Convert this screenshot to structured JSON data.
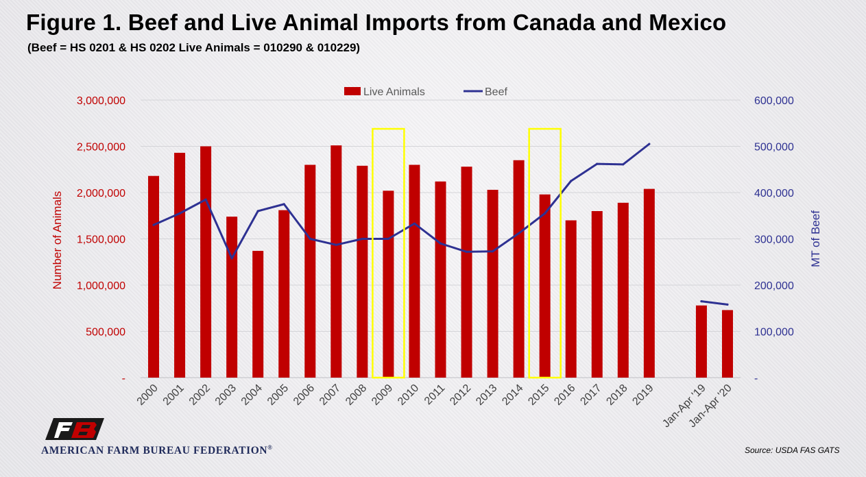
{
  "title": "Figure 1. Beef and Live Animal Imports from Canada and Mexico",
  "subtitle": "(Beef = HS 0201 & HS 0202 Live Animals = 010290 & 010229)",
  "source": "Source: USDA FAS GATS",
  "logo": {
    "text": "AMERICAN FARM BUREAU FEDERATION",
    "mark": "FB"
  },
  "colors": {
    "live_animals": "#c00000",
    "beef": "#2e3192",
    "left_axis": "#c00000",
    "right_axis": "#2e3192",
    "highlight": "#ffff00"
  },
  "chart_data": {
    "type": "bar",
    "categories": [
      "2000",
      "2001",
      "2002",
      "2003",
      "2004",
      "2005",
      "2006",
      "2007",
      "2008",
      "2009",
      "2010",
      "2011",
      "2012",
      "2013",
      "2014",
      "2015",
      "2016",
      "2017",
      "2018",
      "2019",
      "",
      "Jan-Apr '19",
      "Jan-Apr '20"
    ],
    "series": [
      {
        "name": "Live Animals",
        "type": "bar",
        "axis": "left",
        "values": [
          2180000,
          2430000,
          2500000,
          1740000,
          1370000,
          1810000,
          2300000,
          2510000,
          2290000,
          2020000,
          2300000,
          2120000,
          2280000,
          2030000,
          2350000,
          1980000,
          1700000,
          1800000,
          1890000,
          2040000,
          null,
          780000,
          730000
        ]
      },
      {
        "name": "Beef",
        "type": "line",
        "axis": "right",
        "values": [
          330000,
          355000,
          385000,
          258000,
          360000,
          375000,
          300000,
          287000,
          300000,
          300000,
          333000,
          290000,
          272000,
          273000,
          312000,
          355000,
          425000,
          462000,
          461000,
          505000,
          null,
          165000,
          158000
        ]
      }
    ],
    "ylabel": "Number of Animals",
    "y2label": "MT of Beef",
    "ylim": [
      0,
      3000000
    ],
    "y2lim": [
      0,
      600000
    ],
    "yticks": [
      "-",
      "500,000",
      "1,000,000",
      "1,500,000",
      "2,000,000",
      "2,500,000",
      "3,000,000"
    ],
    "y2ticks": [
      "-",
      "100,000",
      "200,000",
      "300,000",
      "400,000",
      "500,000",
      "600,000"
    ],
    "grid": true,
    "legend": "top-center",
    "highlighted_categories": [
      "2009",
      "2015"
    ]
  }
}
